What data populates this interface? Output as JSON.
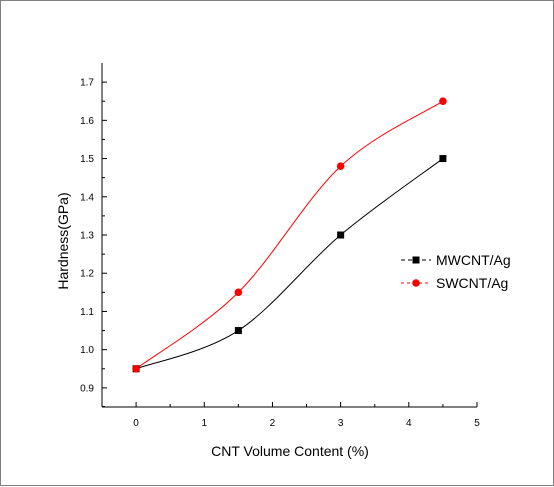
{
  "chart_data": {
    "type": "line",
    "xlabel": "CNT Volume Content (%)",
    "ylabel": "Hardness(GPa)",
    "xlim": [
      -0.5,
      5
    ],
    "ylim": [
      0.85,
      1.75
    ],
    "x_ticks": [
      0,
      1,
      2,
      3,
      4,
      5
    ],
    "y_ticks": [
      0.9,
      1.0,
      1.1,
      1.2,
      1.3,
      1.4,
      1.5,
      1.6,
      1.7
    ],
    "x_tick_labels": [
      "0",
      "1",
      "2",
      "3",
      "4",
      "5"
    ],
    "y_tick_labels": [
      "0.9",
      "1.0",
      "1.1",
      "1.2",
      "1.3",
      "1.4",
      "1.5",
      "1.6",
      "1.7"
    ],
    "grid": false,
    "legend_position": "right",
    "series": [
      {
        "name": "MWCNT/Ag",
        "marker": "square",
        "color": "#000000",
        "x": [
          0,
          1.5,
          3,
          4.5
        ],
        "y": [
          0.95,
          1.05,
          1.3,
          1.5
        ]
      },
      {
        "name": "SWCNT/Ag",
        "marker": "circle",
        "color": "#ff0000",
        "x": [
          0,
          1.5,
          3,
          4.5
        ],
        "y": [
          0.95,
          1.15,
          1.48,
          1.65
        ]
      }
    ]
  }
}
